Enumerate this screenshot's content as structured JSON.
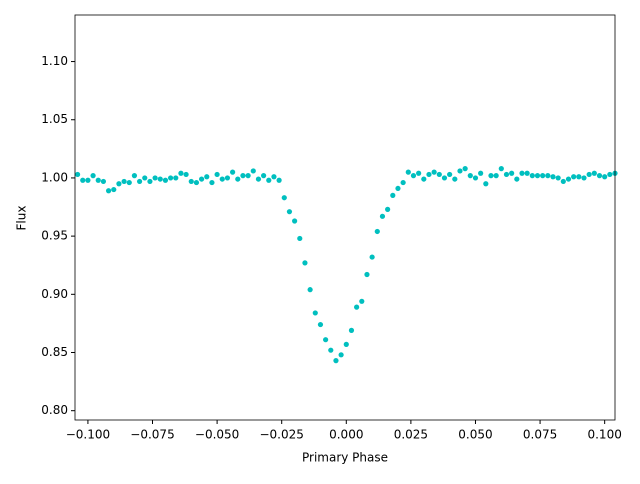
{
  "chart_data": {
    "type": "scatter",
    "xlabel": "Primary Phase",
    "ylabel": "Flux",
    "color": "#00bfbf",
    "xlim": [
      -0.105,
      0.104
    ],
    "ylim": [
      0.792,
      1.14
    ],
    "xticks": [
      {
        "value": -0.1,
        "label": "−0.100"
      },
      {
        "value": -0.075,
        "label": "−0.075"
      },
      {
        "value": -0.05,
        "label": "−0.050"
      },
      {
        "value": -0.025,
        "label": "−0.025"
      },
      {
        "value": 0,
        "label": "0.000"
      },
      {
        "value": 0.025,
        "label": "0.025"
      },
      {
        "value": 0.05,
        "label": "0.050"
      },
      {
        "value": 0.075,
        "label": "0.075"
      },
      {
        "value": 0.1,
        "label": "0.100"
      }
    ],
    "yticks": [
      {
        "value": 0.8,
        "label": "0.80"
      },
      0.85,
      {
        "value": 0.9,
        "label": "0.90"
      },
      0.95,
      {
        "value": 1.0,
        "label": "1.00"
      },
      1.05,
      {
        "value": 1.1,
        "label": "1.10"
      }
    ],
    "x": [
      -0.104,
      -0.102,
      -0.1,
      -0.098,
      -0.096,
      -0.094,
      -0.092,
      -0.09,
      -0.088,
      -0.086,
      -0.084,
      -0.082,
      -0.08,
      -0.078,
      -0.076,
      -0.074,
      -0.072,
      -0.07,
      -0.068,
      -0.066,
      -0.064,
      -0.062,
      -0.06,
      -0.058,
      -0.056,
      -0.054,
      -0.052,
      -0.05,
      -0.048,
      -0.046,
      -0.044,
      -0.042,
      -0.04,
      -0.038,
      -0.036,
      -0.034,
      -0.032,
      -0.03,
      -0.028,
      -0.026,
      -0.024,
      -0.022,
      -0.02,
      -0.018,
      -0.016,
      -0.014,
      -0.012,
      -0.01,
      -0.008,
      -0.006,
      -0.004,
      -0.002,
      0,
      0.002,
      0.004,
      0.006,
      0.008,
      0.01,
      0.012,
      0.014,
      0.016,
      0.018,
      0.02,
      0.022,
      0.024,
      0.026,
      0.028,
      0.03,
      0.032,
      0.034,
      0.036,
      0.038,
      0.04,
      0.042,
      0.044,
      0.046,
      0.048,
      0.05,
      0.052,
      0.054,
      0.056,
      0.058,
      0.06,
      0.062,
      0.064,
      0.066,
      0.068,
      0.07,
      0.072,
      0.074,
      0.076,
      0.078,
      0.08,
      0.082,
      0.084,
      0.086,
      0.088,
      0.09,
      0.092,
      0.094,
      0.096,
      0.098,
      0.1,
      0.102,
      0.104
    ],
    "values": [
      1.003,
      0.998,
      0.998,
      1.002,
      0.998,
      0.997,
      0.989,
      0.99,
      0.995,
      0.997,
      0.996,
      1.002,
      0.997,
      1.0,
      0.997,
      1.0,
      0.999,
      0.998,
      1.0,
      1.0,
      1.004,
      1.003,
      0.997,
      0.996,
      0.999,
      1.001,
      0.996,
      1.003,
      0.999,
      1.0,
      1.005,
      0.999,
      1.002,
      1.002,
      1.006,
      0.999,
      1.002,
      0.998,
      1.001,
      0.998,
      0.983,
      0.971,
      0.963,
      0.948,
      0.927,
      0.904,
      0.884,
      0.874,
      0.861,
      0.852,
      0.843,
      0.848,
      0.857,
      0.869,
      0.889,
      0.894,
      0.917,
      0.932,
      0.954,
      0.967,
      0.973,
      0.985,
      0.991,
      0.996,
      1.005,
      1.002,
      1.004,
      0.999,
      1.003,
      1.005,
      1.003,
      1.0,
      1.003,
      0.999,
      1.006,
      1.008,
      1.002,
      1.0,
      1.004,
      0.995,
      1.002,
      1.002,
      1.008,
      1.003,
      1.004,
      0.999,
      1.004,
      1.004,
      1.002,
      1.002,
      1.002,
      1.002,
      1.001,
      1.0,
      0.997,
      0.999,
      1.001,
      1.001,
      1.0,
      1.003,
      1.004,
      1.002,
      1.001,
      1.003,
      1.004
    ]
  }
}
